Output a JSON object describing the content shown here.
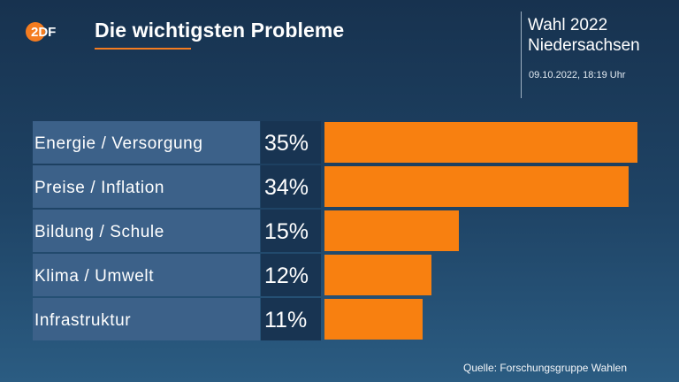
{
  "header": {
    "logo_text": "2DF",
    "title": "Die wichtigsten Probleme",
    "election_line1": "Wahl 2022",
    "election_line2": "Niedersachsen",
    "timestamp": "09.10.2022, 18:19 Uhr"
  },
  "footer": {
    "source": "Quelle: Forschungsgruppe Wahlen"
  },
  "colors": {
    "bar": "#f88010",
    "label_bg": "#3c6189",
    "value_bg": "#183452",
    "accent": "#f47c20"
  },
  "chart_data": {
    "type": "bar",
    "orientation": "horizontal",
    "title": "Die wichtigsten Probleme",
    "categories": [
      "Energie / Versorgung",
      "Preise / Inflation",
      "Bildung / Schule",
      "Klima / Umwelt",
      "Infrastruktur"
    ],
    "values": [
      35,
      34,
      15,
      12,
      11
    ],
    "value_labels": [
      "35%",
      "34%",
      "15%",
      "12%",
      "11%"
    ],
    "unit": "%",
    "xlim": [
      0,
      35
    ],
    "grid": false,
    "legend": "none"
  }
}
